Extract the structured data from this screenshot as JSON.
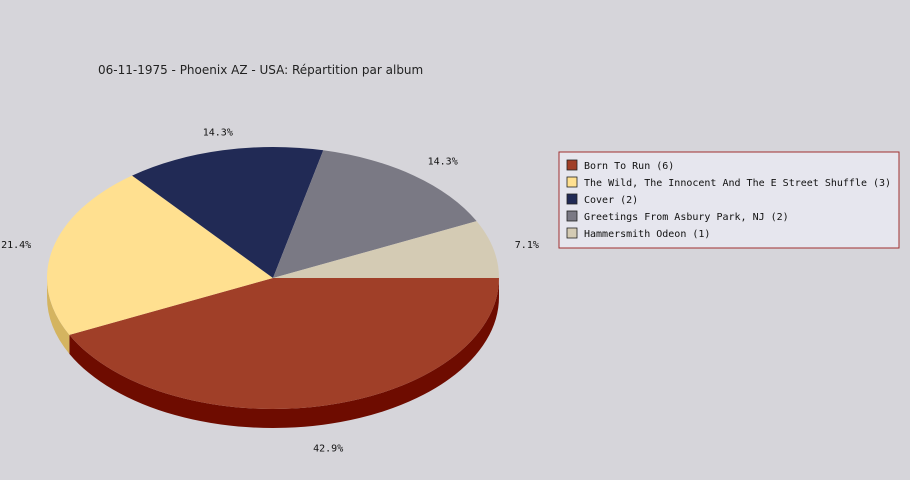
{
  "chart_data": {
    "type": "pie",
    "title": "06-11-1975 - Phoenix AZ - USA:  Répartition par album",
    "legend_position": "right",
    "slices": [
      {
        "label": "Born To Run (6)",
        "value": 6,
        "percent_label": "42.9%",
        "color": "#a03f28",
        "side_color": "#6e0c00"
      },
      {
        "label": "The Wild, The Innocent And The E Street Shuffle (3)",
        "value": 3,
        "percent_label": "21.4%",
        "color": "#ffe090",
        "side_color": "#d4b460"
      },
      {
        "label": "Cover (2)",
        "value": 2,
        "percent_label": "14.3%",
        "color": "#212a55",
        "side_color": "#101638"
      },
      {
        "label": "Greetings From Asbury Park, NJ (2)",
        "value": 2,
        "percent_label": "14.3%",
        "color": "#7a7984",
        "side_color": "#55545e"
      },
      {
        "label": "Hammersmith Odeon  (1)",
        "value": 1,
        "percent_label": "7.1%",
        "color": "#d4cbb4",
        "side_color": "#aaa190"
      }
    ]
  },
  "colors": {
    "background": "#d6d5da",
    "legend_background": "#e6e6ee",
    "legend_border": "#a03030"
  }
}
